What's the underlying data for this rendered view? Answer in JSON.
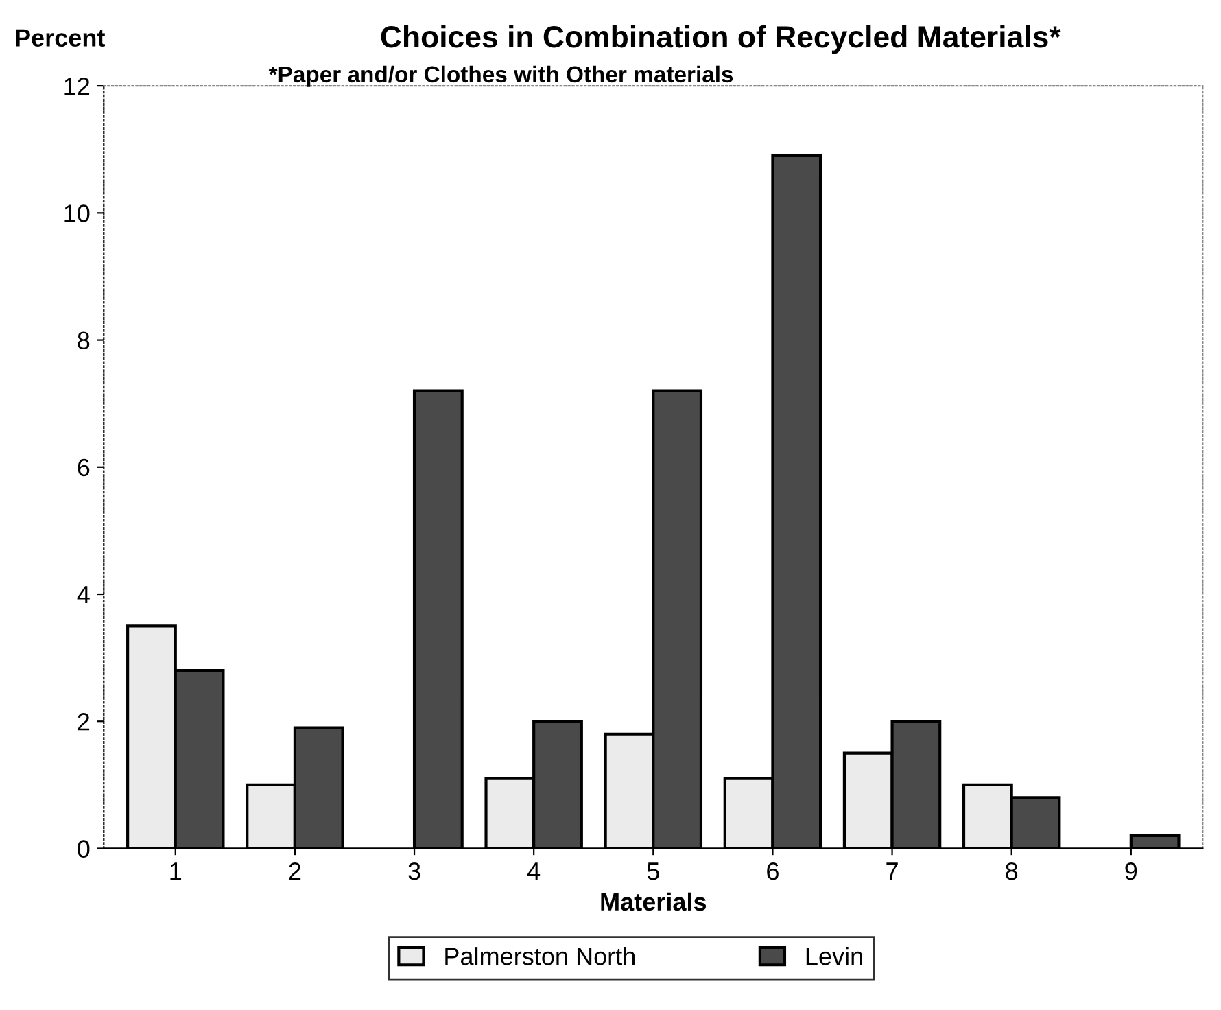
{
  "chart_data": {
    "type": "bar",
    "title": "Choices in Combination of Recycled Materials*",
    "subtitle": "*Paper and/or Clothes with Other materials",
    "xlabel": "Materials",
    "ylabel": "Percent",
    "categories": [
      "1",
      "2",
      "3",
      "4",
      "5",
      "6",
      "7",
      "8",
      "9"
    ],
    "series": [
      {
        "name": "Palmerston North",
        "color": "#ebebeb",
        "values": [
          3.5,
          1.0,
          null,
          1.1,
          1.8,
          1.1,
          1.5,
          1.0,
          null
        ]
      },
      {
        "name": "Levin",
        "color": "#4a4a4a",
        "values": [
          2.8,
          1.9,
          7.2,
          2.0,
          7.2,
          10.9,
          2.0,
          0.8,
          0.2
        ]
      }
    ],
    "ylim": [
      0,
      12
    ],
    "yticks": [
      0,
      2,
      4,
      6,
      8,
      10,
      12
    ],
    "grid": false,
    "legend": "bottom"
  }
}
